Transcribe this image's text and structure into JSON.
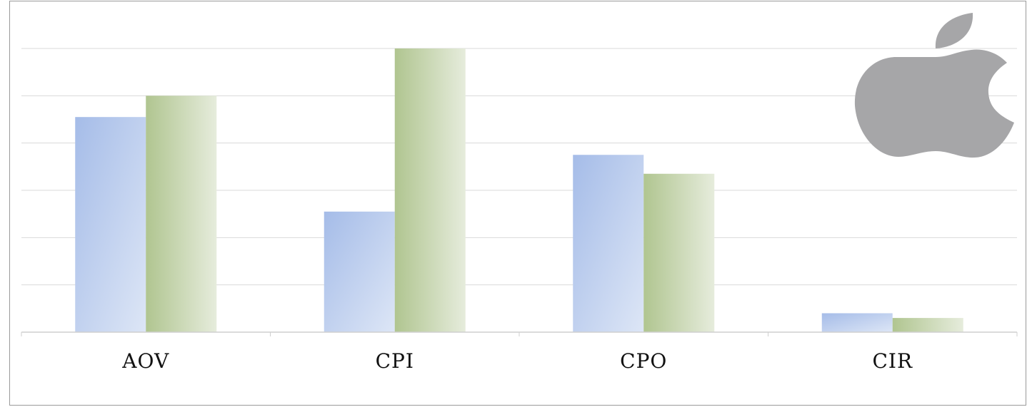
{
  "chart_data": {
    "type": "bar",
    "categories": [
      "AOV",
      "CPI",
      "CPO",
      "CIR"
    ],
    "series": [
      {
        "values": [
          4.55,
          2.55,
          3.75,
          0.4
        ]
      },
      {
        "values": [
          5.0,
          6.0,
          3.35,
          0.3
        ]
      }
    ],
    "ylim": [
      0,
      6
    ],
    "grid": true,
    "legend": "none",
    "colors": {
      "series1": "#a9bfe8",
      "series2": "#b5c897",
      "grid": "#dadada",
      "logo": "#a6a6a8"
    }
  },
  "logo": {
    "icon": "apple-logo-icon"
  }
}
